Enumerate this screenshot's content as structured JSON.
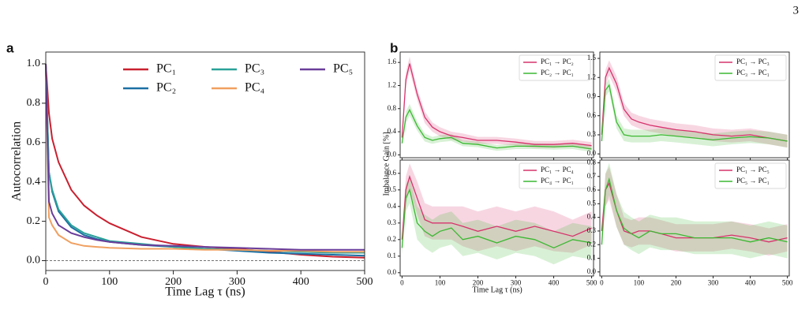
{
  "page_number": "3",
  "panels": [
    {
      "label": "a"
    },
    {
      "label": "b",
      "x_label": "Time Lag τ (ns)",
      "y_label": "Imbalance Gain [%]"
    }
  ],
  "chart_data": [
    {
      "type": "line",
      "x_label": "Time Lag τ (ns)",
      "y_label": "Autocorrelation",
      "x": [
        0,
        5,
        10,
        20,
        40,
        60,
        80,
        100,
        150,
        200,
        250,
        300,
        350,
        400,
        450,
        500
      ],
      "series": [
        {
          "name": "PC₁",
          "color": "#c9202f",
          "values": [
            1.0,
            0.75,
            0.62,
            0.5,
            0.36,
            0.28,
            0.23,
            0.19,
            0.12,
            0.085,
            0.07,
            0.06,
            0.045,
            0.03,
            0.02,
            0.015
          ]
        },
        {
          "name": "PC₂",
          "color": "#1b6fa3",
          "values": [
            1.0,
            0.45,
            0.35,
            0.25,
            0.17,
            0.13,
            0.11,
            0.095,
            0.08,
            0.07,
            0.06,
            0.05,
            0.04,
            0.035,
            0.03,
            0.025
          ]
        },
        {
          "name": "PC₃",
          "color": "#2aa198",
          "values": [
            1.0,
            0.45,
            0.36,
            0.26,
            0.18,
            0.14,
            0.12,
            0.1,
            0.085,
            0.07,
            0.06,
            0.055,
            0.05,
            0.045,
            0.04,
            0.04
          ]
        },
        {
          "name": "PC₄",
          "color": "#f0a060",
          "values": [
            1.0,
            0.22,
            0.18,
            0.13,
            0.09,
            0.075,
            0.07,
            0.065,
            0.06,
            0.06,
            0.055,
            0.055,
            0.05,
            0.05,
            0.045,
            0.045
          ]
        },
        {
          "name": "PC₅",
          "color": "#6a3d9a",
          "values": [
            1.0,
            0.3,
            0.24,
            0.18,
            0.14,
            0.12,
            0.105,
            0.095,
            0.08,
            0.075,
            0.07,
            0.065,
            0.06,
            0.055,
            0.055,
            0.055
          ]
        }
      ],
      "hline": 0,
      "xlim": [
        0,
        500
      ],
      "xticks": [
        0,
        100,
        200,
        300,
        400,
        500
      ],
      "ylim": [
        -0.05,
        1.06
      ],
      "yticks": [
        {
          "value": 0,
          "label": "0.0"
        },
        0.2,
        0.4,
        0.6,
        0.8,
        {
          "value": 1,
          "label": "1.0"
        }
      ],
      "legend": "top",
      "legend_columns": 3
    },
    {
      "type": "line",
      "show_xtick_labels": false,
      "x": [
        0,
        10,
        20,
        40,
        60,
        80,
        100,
        130,
        160,
        200,
        250,
        300,
        350,
        400,
        450,
        500
      ],
      "series": [
        {
          "name": "PC₁ → PC₂",
          "color": "#d6336c",
          "values": [
            0.3,
            1.3,
            1.58,
            1.05,
            0.65,
            0.48,
            0.4,
            0.33,
            0.3,
            0.25,
            0.25,
            0.22,
            0.18,
            0.18,
            0.2,
            0.16
          ],
          "error": [
            0.05,
            0.12,
            0.12,
            0.1,
            0.1,
            0.08,
            0.08,
            0.07,
            0.07,
            0.06,
            0.06,
            0.06,
            0.06,
            0.06,
            0.06,
            0.06
          ]
        },
        {
          "name": "PC₂ → PC₁",
          "color": "#3cb832",
          "values": [
            0.2,
            0.65,
            0.78,
            0.5,
            0.3,
            0.25,
            0.28,
            0.3,
            0.2,
            0.18,
            0.12,
            0.15,
            0.15,
            0.14,
            0.15,
            0.1
          ],
          "error": [
            0.05,
            0.1,
            0.1,
            0.08,
            0.07,
            0.06,
            0.06,
            0.06,
            0.05,
            0.05,
            0.05,
            0.05,
            0.05,
            0.05,
            0.05,
            0.05
          ]
        }
      ],
      "xlim": [
        -5,
        505
      ],
      "xticks": [
        0,
        100,
        200,
        300,
        400,
        500
      ],
      "ylim": [
        -0.05,
        1.78
      ],
      "yticks": [
        {
          "value": 0,
          "label": "0.0"
        },
        0.4,
        0.8,
        1.2,
        1.6
      ],
      "legend": "upper right"
    },
    {
      "type": "line",
      "show_xtick_labels": false,
      "x": [
        0,
        10,
        20,
        40,
        60,
        80,
        100,
        130,
        160,
        200,
        250,
        300,
        350,
        400,
        450,
        500
      ],
      "series": [
        {
          "name": "PC₁ → PC₃",
          "color": "#d6336c",
          "values": [
            0.3,
            1.2,
            1.35,
            1.1,
            0.7,
            0.55,
            0.5,
            0.45,
            0.42,
            0.38,
            0.35,
            0.3,
            0.28,
            0.3,
            0.25,
            0.2
          ],
          "error": [
            0.05,
            0.12,
            0.12,
            0.12,
            0.1,
            0.1,
            0.1,
            0.1,
            0.1,
            0.1,
            0.1,
            0.1,
            0.1,
            0.1,
            0.1,
            0.1
          ]
        },
        {
          "name": "PC₃ → PC₁",
          "color": "#3cb832",
          "values": [
            0.2,
            1.0,
            1.08,
            0.5,
            0.3,
            0.28,
            0.28,
            0.28,
            0.3,
            0.28,
            0.25,
            0.22,
            0.25,
            0.27,
            0.25,
            0.2
          ],
          "error": [
            0.05,
            0.1,
            0.1,
            0.1,
            0.1,
            0.1,
            0.1,
            0.1,
            0.1,
            0.1,
            0.1,
            0.1,
            0.1,
            0.1,
            0.1,
            0.1
          ]
        }
      ],
      "xlim": [
        -5,
        505
      ],
      "xticks": [
        0,
        100,
        200,
        300,
        400,
        500
      ],
      "ylim": [
        -0.06,
        1.6
      ],
      "yticks": [
        {
          "value": 0,
          "label": "0.0"
        },
        0.3,
        0.6,
        0.9,
        1.2,
        1.5
      ],
      "legend": "upper right"
    },
    {
      "type": "line",
      "show_xtick_labels": true,
      "x": [
        0,
        10,
        20,
        40,
        60,
        80,
        100,
        130,
        160,
        200,
        250,
        300,
        350,
        400,
        450,
        500
      ],
      "series": [
        {
          "name": "PC₁ → PC₄",
          "color": "#d6336c",
          "values": [
            0.2,
            0.5,
            0.58,
            0.45,
            0.32,
            0.3,
            0.3,
            0.3,
            0.28,
            0.25,
            0.28,
            0.25,
            0.28,
            0.25,
            0.22,
            0.27
          ],
          "error": [
            0.04,
            0.08,
            0.08,
            0.1,
            0.1,
            0.1,
            0.1,
            0.1,
            0.12,
            0.12,
            0.12,
            0.12,
            0.12,
            0.12,
            0.1,
            0.1
          ]
        },
        {
          "name": "PC₄ → PC₁",
          "color": "#3cb832",
          "values": [
            0.15,
            0.45,
            0.5,
            0.3,
            0.25,
            0.22,
            0.25,
            0.27,
            0.2,
            0.22,
            0.18,
            0.22,
            0.2,
            0.15,
            0.2,
            0.18
          ],
          "error": [
            0.04,
            0.08,
            0.08,
            0.1,
            0.1,
            0.1,
            0.1,
            0.1,
            0.1,
            0.1,
            0.1,
            0.1,
            0.1,
            0.1,
            0.1,
            0.1
          ]
        }
      ],
      "xlim": [
        -5,
        505
      ],
      "xticks": [
        0,
        100,
        200,
        300,
        400,
        500
      ],
      "ylim": [
        -0.02,
        0.68
      ],
      "yticks": [
        {
          "value": 0,
          "label": "0.0"
        },
        0.1,
        0.2,
        0.3,
        0.4,
        0.5,
        0.6
      ],
      "legend": "upper right"
    },
    {
      "type": "line",
      "show_xtick_labels": true,
      "x": [
        0,
        10,
        20,
        40,
        60,
        80,
        100,
        130,
        160,
        200,
        250,
        300,
        350,
        400,
        450,
        500
      ],
      "series": [
        {
          "name": "PC₁ → PC₅",
          "color": "#d6336c",
          "values": [
            0.3,
            0.6,
            0.65,
            0.45,
            0.3,
            0.28,
            0.3,
            0.3,
            0.28,
            0.25,
            0.25,
            0.25,
            0.27,
            0.25,
            0.22,
            0.25
          ],
          "error": [
            0.05,
            0.12,
            0.12,
            0.12,
            0.1,
            0.1,
            0.1,
            0.1,
            0.1,
            0.1,
            0.1,
            0.1,
            0.1,
            0.1,
            0.1,
            0.1
          ]
        },
        {
          "name": "PC₅ → PC₁",
          "color": "#3cb832",
          "values": [
            0.2,
            0.6,
            0.68,
            0.45,
            0.32,
            0.28,
            0.25,
            0.3,
            0.28,
            0.28,
            0.25,
            0.25,
            0.25,
            0.22,
            0.25,
            0.22
          ],
          "error": [
            0.05,
            0.12,
            0.12,
            0.12,
            0.12,
            0.12,
            0.12,
            0.12,
            0.12,
            0.12,
            0.12,
            0.12,
            0.12,
            0.12,
            0.12,
            0.12
          ]
        }
      ],
      "xlim": [
        -5,
        505
      ],
      "xticks": [
        0,
        100,
        200,
        300,
        400,
        500
      ],
      "ylim": [
        -0.03,
        0.82
      ],
      "yticks": [
        {
          "value": 0,
          "label": "0.0"
        },
        0.1,
        0.2,
        0.3,
        0.4,
        0.5,
        0.6,
        0.7,
        0.8
      ],
      "legend": "upper right"
    }
  ]
}
